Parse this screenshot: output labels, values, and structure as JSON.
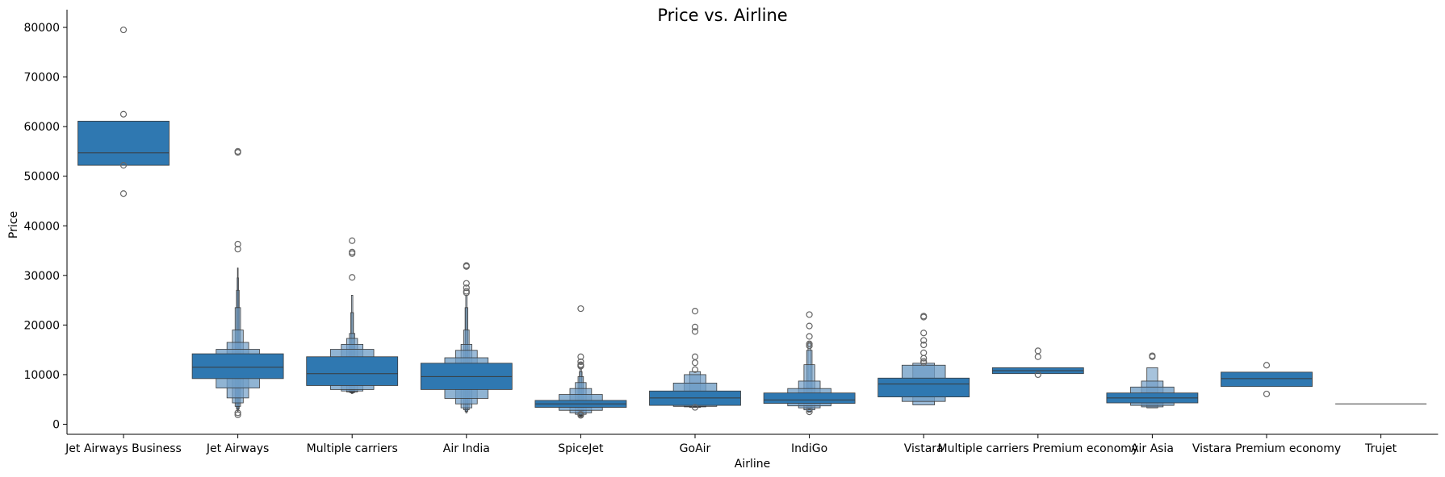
{
  "chart_data": {
    "type": "boxen",
    "title": "Price vs. Airline",
    "xlabel": "Airline",
    "ylabel": "Price",
    "ylim": [
      -2000,
      83500
    ],
    "yticks": [
      0,
      10000,
      20000,
      30000,
      40000,
      50000,
      60000,
      70000,
      80000
    ],
    "colors": {
      "box": "#2f78b1",
      "edge": "#3a3a3a",
      "median": "#3a3a3a",
      "outlier_edge": "#666666"
    },
    "categories": [
      "Jet Airways Business",
      "Jet Airways",
      "Multiple carriers",
      "Air India",
      "SpiceJet",
      "GoAir",
      "IndiGo",
      "Vistara",
      "Multiple carriers Premium economy",
      "Air Asia",
      "Vistara Premium economy",
      "Trujet"
    ],
    "series": [
      {
        "category": "Jet Airways Business",
        "median": 54700,
        "boxes": [
          [
            52200,
            61100
          ]
        ],
        "outliers": [
          79500,
          62500,
          52200,
          46500
        ]
      },
      {
        "category": "Jet Airways",
        "median": 11500,
        "boxes": [
          [
            9200,
            14200
          ],
          [
            7300,
            15100
          ],
          [
            5300,
            16500
          ],
          [
            4300,
            19000
          ],
          [
            3600,
            23500
          ],
          [
            3100,
            27000
          ],
          [
            2800,
            29500
          ],
          [
            2500,
            31500
          ]
        ],
        "outliers": [
          54800,
          55000,
          36300,
          35300,
          2300,
          1900
        ]
      },
      {
        "category": "Multiple carriers",
        "median": 10200,
        "boxes": [
          [
            7800,
            13600
          ],
          [
            7000,
            15100
          ],
          [
            6700,
            16100
          ],
          [
            6500,
            17300
          ],
          [
            6400,
            18300
          ],
          [
            6300,
            22500
          ],
          [
            6200,
            26000
          ]
        ],
        "outliers": [
          37000,
          34700,
          34400,
          29600
        ]
      },
      {
        "category": "Air India",
        "median": 9600,
        "boxes": [
          [
            7000,
            12300
          ],
          [
            5200,
            13400
          ],
          [
            4100,
            14900
          ],
          [
            3300,
            16100
          ],
          [
            2900,
            19000
          ],
          [
            2600,
            23500
          ],
          [
            2300,
            26000
          ]
        ],
        "outliers": [
          32000,
          31800,
          28400,
          27500,
          26800,
          26500
        ]
      },
      {
        "category": "SpiceJet",
        "median": 4100,
        "boxes": [
          [
            3400,
            4800
          ],
          [
            2800,
            6000
          ],
          [
            2300,
            7200
          ],
          [
            2000,
            8400
          ],
          [
            1800,
            9600
          ],
          [
            1700,
            10600
          ],
          [
            1600,
            11400
          ]
        ],
        "outliers": [
          23300,
          13600,
          12600,
          12000,
          11700,
          11800,
          2000,
          1800
        ]
      },
      {
        "category": "GoAir",
        "median": 5300,
        "boxes": [
          [
            3800,
            6700
          ],
          [
            3600,
            8300
          ],
          [
            3500,
            10000
          ],
          [
            3400,
            10600
          ]
        ],
        "outliers": [
          22800,
          19600,
          18700,
          13600,
          12400,
          11000,
          3400
        ]
      },
      {
        "category": "IndiGo",
        "median": 4900,
        "boxes": [
          [
            4200,
            6300
          ],
          [
            3700,
            7200
          ],
          [
            3300,
            8700
          ],
          [
            2900,
            12000
          ],
          [
            2600,
            14900
          ],
          [
            2400,
            16500
          ]
        ],
        "outliers": [
          22100,
          19800,
          17700,
          16200,
          15800,
          2500
        ]
      },
      {
        "category": "Vistara",
        "median": 8100,
        "boxes": [
          [
            5500,
            9300
          ],
          [
            4600,
            11900
          ],
          [
            3900,
            12300
          ]
        ],
        "outliers": [
          21800,
          21600,
          18400,
          16900,
          16000,
          14400,
          13300,
          12700,
          12400
        ]
      },
      {
        "category": "Multiple carriers Premium economy",
        "median": 10800,
        "boxes": [
          [
            10200,
            11400
          ]
        ],
        "outliers": [
          14800,
          13600,
          10000
        ]
      },
      {
        "category": "Air Asia",
        "median": 5300,
        "boxes": [
          [
            4300,
            6300
          ],
          [
            3800,
            7500
          ],
          [
            3500,
            8700
          ],
          [
            3300,
            11400
          ]
        ],
        "outliers": [
          13800,
          13600
        ]
      },
      {
        "category": "Vistara Premium economy",
        "median": 9200,
        "boxes": [
          [
            7600,
            10500
          ]
        ],
        "outliers": [
          11900,
          6100
        ]
      },
      {
        "category": "Trujet",
        "median": 4100,
        "boxes": [],
        "outliers": []
      }
    ]
  }
}
